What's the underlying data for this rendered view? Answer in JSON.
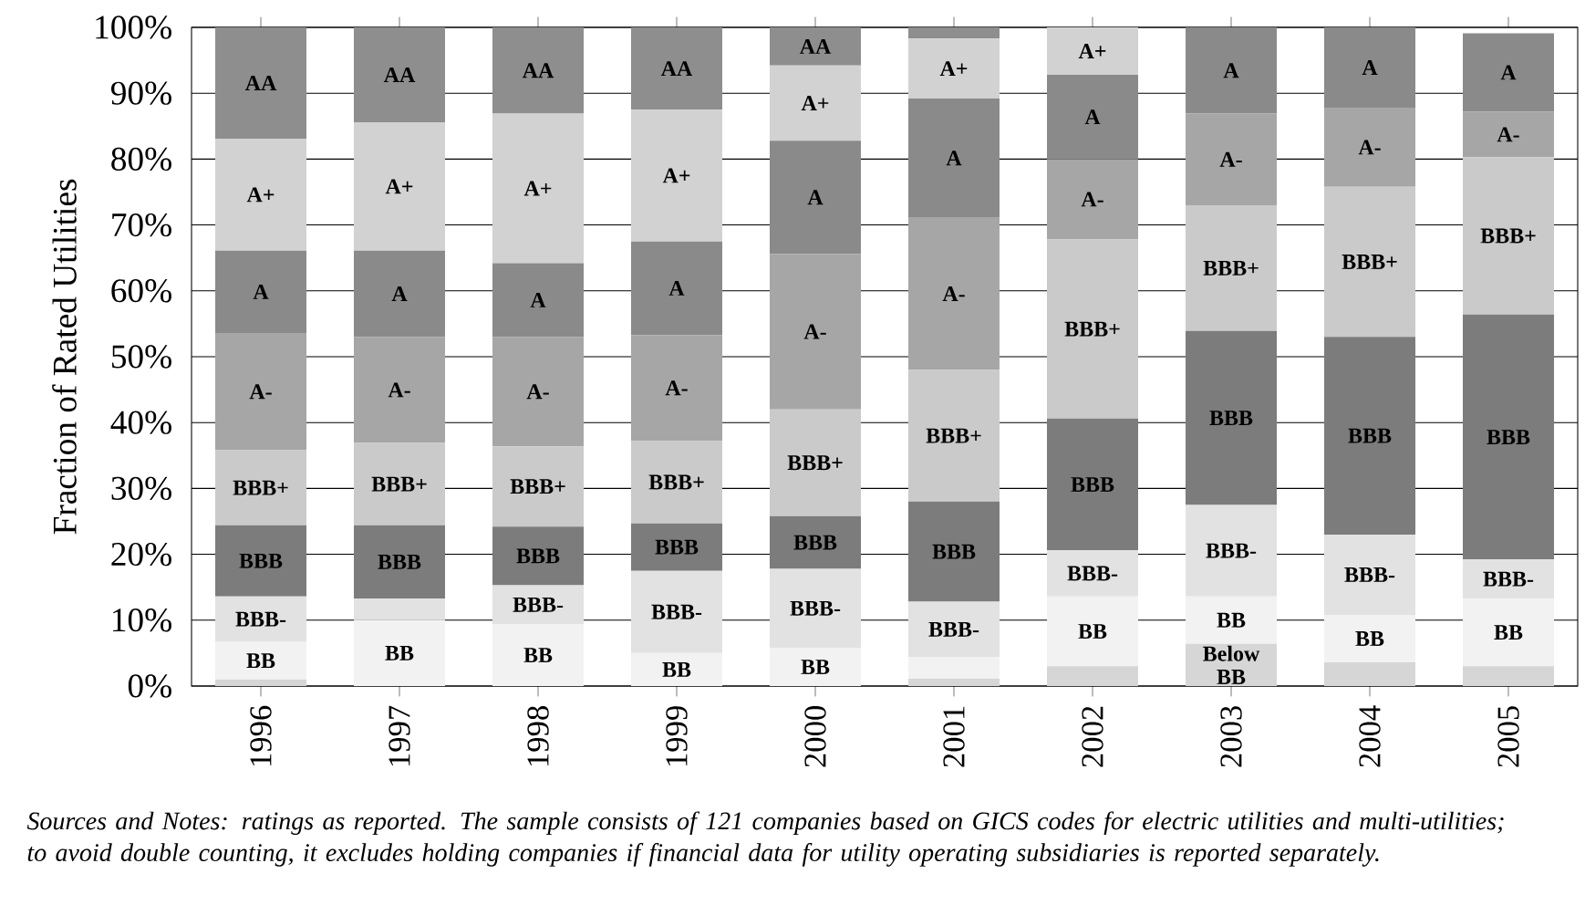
{
  "chart_data": {
    "type": "bar",
    "stacked": true,
    "ylabel": "Fraction of Rated Utilities",
    "categories": [
      "1996",
      "1997",
      "1998",
      "1999",
      "2000",
      "2001",
      "2002",
      "2003",
      "2004",
      "2005"
    ],
    "series": [
      {
        "name": "Below BB",
        "color": "#d6d6d6",
        "values": [
          1,
          null,
          null,
          null,
          null,
          1.1,
          3,
          6.4,
          3.6,
          3
        ]
      },
      {
        "name": "BB",
        "color": "#f2f2f2",
        "values": [
          5.7,
          10,
          9.4,
          5,
          5.8,
          3.3,
          10.6,
          7.2,
          7.2,
          10.3
        ]
      },
      {
        "name": "BBB-",
        "color": "#e2e2e2",
        "values": [
          6.9,
          3.3,
          5.9,
          12.5,
          12,
          8.4,
          7,
          13.9,
          12.2,
          5.9
        ]
      },
      {
        "name": "BBB",
        "color": "#7c7c7c",
        "values": [
          10.8,
          11.1,
          8.9,
          7.2,
          8,
          15.2,
          20,
          26.4,
          30,
          37.2
        ]
      },
      {
        "name": "BBB+",
        "color": "#cacaca",
        "values": [
          11.4,
          12.5,
          12.2,
          12.5,
          16.2,
          20,
          27.2,
          19.1,
          22.8,
          23.9
        ]
      },
      {
        "name": "A-",
        "color": "#a6a6a6",
        "values": [
          17.8,
          16.1,
          16.6,
          16.1,
          23.6,
          23.1,
          12.2,
          13.9,
          12,
          6.9
        ]
      },
      {
        "name": "A",
        "color": "#8a8a8a",
        "values": [
          12.5,
          13.1,
          11.2,
          14.2,
          17.2,
          18.1,
          12.8,
          13.1,
          12.2,
          11.9
        ]
      },
      {
        "name": "A+",
        "color": "#d2d2d2",
        "values": [
          17,
          19.5,
          22.7,
          20,
          11.4,
          9.1,
          7.2,
          null,
          null,
          null
        ]
      },
      {
        "name": "AA",
        "color": "#8e8e8e",
        "values": [
          16.9,
          14.4,
          13.1,
          12.5,
          5.8,
          1.7,
          null,
          null,
          null,
          null
        ]
      }
    ],
    "ylim": [
      0,
      100
    ],
    "yticks": [
      {
        "value": 0,
        "label": "0%"
      },
      {
        "value": 10,
        "label": "10%"
      },
      {
        "value": 20,
        "label": "20%"
      },
      {
        "value": 30,
        "label": "30%"
      },
      {
        "value": 40,
        "label": "40%"
      },
      {
        "value": 50,
        "label": "50%"
      },
      {
        "value": 60,
        "label": "60%"
      },
      {
        "value": 70,
        "label": "70%"
      },
      {
        "value": 80,
        "label": "80%"
      },
      {
        "value": 90,
        "label": "90%"
      },
      {
        "value": 100,
        "label": "100%"
      }
    ],
    "grid": "y",
    "legend": false,
    "annotations": [
      "Sources and Notes: ratings as reported. The sample consists of 121 companies based on GICS codes for electric utilities and multi-utilities; to avoid double counting, it excludes holding companies if financial data for utility operating subsidiaries is reported separately."
    ]
  }
}
